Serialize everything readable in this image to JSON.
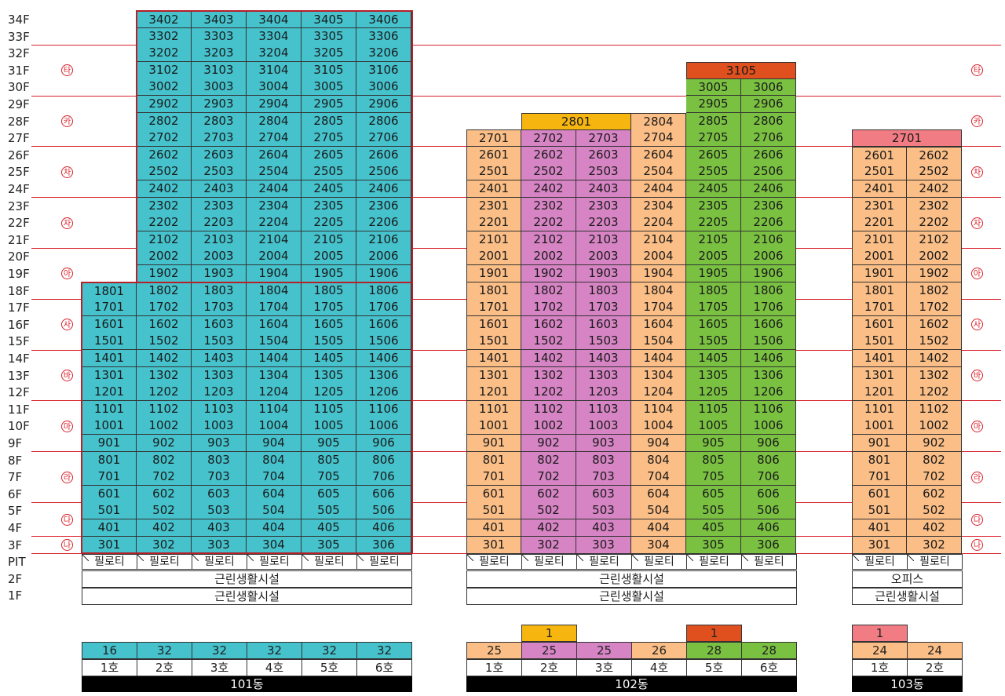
{
  "floors": [
    "34F",
    "33F",
    "32F",
    "31F",
    "30F",
    "29F",
    "28F",
    "27F",
    "26F",
    "25F",
    "24F",
    "23F",
    "22F",
    "21F",
    "20F",
    "19F",
    "18F",
    "17F",
    "16F",
    "15F",
    "14F",
    "13F",
    "12F",
    "11F",
    "10F",
    "9F",
    "8F",
    "7F",
    "6F",
    "5F",
    "4F",
    "3F",
    "PIT",
    "2F",
    "1F"
  ],
  "zones": [
    "타",
    "카",
    "차",
    "자",
    "아",
    "사",
    "바",
    "마",
    "라",
    "다",
    "나"
  ],
  "colors": {
    "teal": "#45c2cc",
    "orange": "#fbbe86",
    "pink": "#d684c4",
    "green": "#7ac142",
    "yellow": "#f6b60f",
    "red": "#e04f1e",
    "salmon": "#f17c84",
    "zone_red": "#d9202a",
    "outline": "#b5202a"
  },
  "piloti_label": "필로티",
  "buildings": [
    {
      "name": "101동",
      "lower_facility": "근린생활시설",
      "upper_facility": "근린생활시설",
      "units": [
        "1호",
        "2호",
        "3호",
        "4호",
        "5호",
        "6호"
      ],
      "counts": [
        16,
        32,
        32,
        32,
        32,
        32
      ],
      "extra_counts": [
        null,
        null,
        null,
        null,
        null,
        null
      ]
    },
    {
      "name": "102동",
      "lower_facility": "근린생활시설",
      "upper_facility": "근린생활시설",
      "units": [
        "1호",
        "2호",
        "3호",
        "4호",
        "5호",
        "6호"
      ],
      "counts": [
        25,
        25,
        25,
        26,
        28,
        28
      ],
      "extra_counts": [
        null,
        1,
        null,
        null,
        1,
        null
      ],
      "special_units": [
        "2801",
        "3105"
      ]
    },
    {
      "name": "103동",
      "lower_facility": "근린생활시설",
      "upper_facility": "오피스",
      "units": [
        "1호",
        "2호"
      ],
      "counts": [
        24,
        24
      ],
      "extra_counts": [
        1,
        null
      ],
      "special_units": [
        "2701"
      ]
    }
  ]
}
